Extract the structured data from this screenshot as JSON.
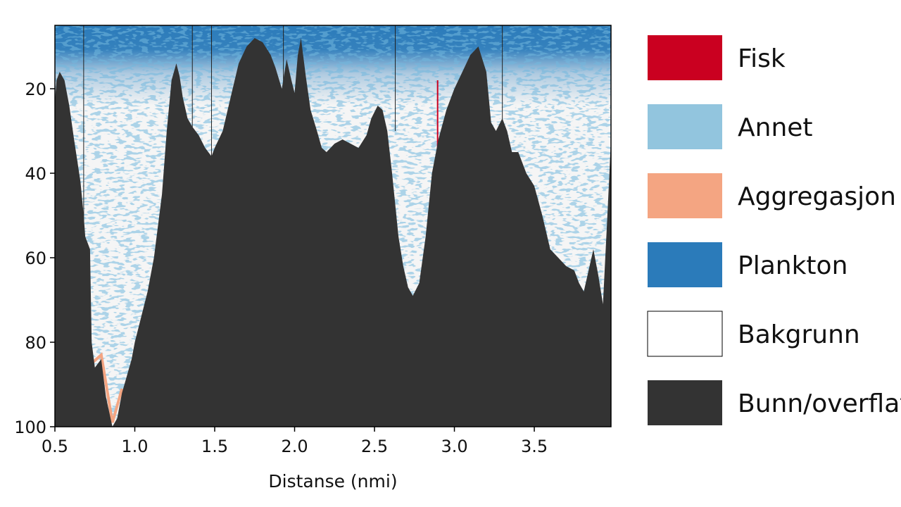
{
  "chart_data": {
    "type": "heatmap",
    "title": "",
    "xlabel": "Distanse (nmi)",
    "ylabel": "",
    "xlim": [
      0.5,
      3.98
    ],
    "ylim": [
      100,
      5
    ],
    "y_inverted": true,
    "x_ticks": [
      "0.5",
      "1.0",
      "1.5",
      "2.0",
      "2.5",
      "3.0",
      "3.5"
    ],
    "x_tick_values": [
      0.5,
      1.0,
      1.5,
      2.0,
      2.5,
      3.0,
      3.5
    ],
    "y_ticks": [
      "20",
      "40",
      "60",
      "80",
      "100"
    ],
    "y_tick_values": [
      20,
      40,
      60,
      80,
      100
    ],
    "grid": false,
    "legend_position": "right",
    "categories": [
      {
        "name": "Fisk",
        "color": "#ca0020"
      },
      {
        "name": "Annet",
        "color": "#92c5de"
      },
      {
        "name": "Aggregasjon",
        "color": "#f4a582"
      },
      {
        "name": "Plankton",
        "color": "#2b7bba"
      },
      {
        "name": "Bakgrunn",
        "color": "#ffffff"
      },
      {
        "name": "Bunn/overflate",
        "color": "#333333"
      }
    ],
    "background_color": "#f5f5f5",
    "bottom_profile": {
      "x": [
        0.5,
        0.51,
        0.53,
        0.56,
        0.59,
        0.62,
        0.66,
        0.68,
        0.69,
        0.72,
        0.73,
        0.75,
        0.79,
        0.82,
        0.86,
        0.89,
        0.92,
        0.95,
        0.98,
        1.0,
        1.04,
        1.08,
        1.12,
        1.17,
        1.2,
        1.23,
        1.26,
        1.28,
        1.3,
        1.33,
        1.36,
        1.4,
        1.44,
        1.48,
        1.5,
        1.55,
        1.6,
        1.65,
        1.7,
        1.75,
        1.8,
        1.85,
        1.88,
        1.92,
        1.95,
        1.98,
        2.0,
        2.02,
        2.04,
        2.07,
        2.1,
        2.14,
        2.17,
        2.2,
        2.25,
        2.3,
        2.35,
        2.4,
        2.45,
        2.48,
        2.52,
        2.55,
        2.58,
        2.61,
        2.65,
        2.68,
        2.71,
        2.74,
        2.78,
        2.82,
        2.86,
        2.9,
        2.95,
        3.0,
        3.05,
        3.1,
        3.15,
        3.2,
        3.23,
        3.26,
        3.3,
        3.33,
        3.36,
        3.4,
        3.45,
        3.5,
        3.55,
        3.6,
        3.65,
        3.7,
        3.75,
        3.78,
        3.81,
        3.84,
        3.87,
        3.9,
        3.93,
        3.96,
        3.98
      ],
      "y": [
        23,
        18,
        16,
        18,
        24,
        32,
        42,
        50,
        55,
        58,
        80,
        86,
        84,
        93,
        100,
        98,
        92,
        88,
        84,
        80,
        74,
        68,
        60,
        45,
        30,
        18,
        14,
        17,
        22,
        27,
        29,
        31,
        34,
        36,
        34,
        30,
        22,
        14,
        10,
        8,
        9,
        12,
        15,
        20,
        13,
        18,
        21,
        12,
        8,
        17,
        25,
        30,
        34,
        35,
        33,
        32,
        33,
        34,
        31,
        27,
        24,
        25,
        30,
        40,
        55,
        62,
        67,
        69,
        66,
        55,
        40,
        32,
        25,
        20,
        16,
        12,
        10,
        16,
        28,
        30,
        27,
        30,
        35,
        35,
        40,
        43,
        50,
        58,
        60,
        62,
        63,
        66,
        68,
        63,
        58,
        64,
        71,
        48,
        32
      ]
    }
  }
}
